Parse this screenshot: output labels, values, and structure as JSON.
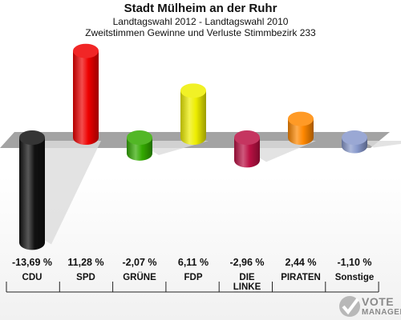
{
  "chart_data": {
    "type": "bar",
    "title": "Stadt Mülheim an der Ruhr",
    "subtitle_1": "Landtagswahl 2012 - Landtagswahl 2010",
    "subtitle_2": "Zweitstimmen Gewinne und Verluste Stimmbezirk 233",
    "categories": [
      "CDU",
      "SPD",
      "GRÜNE",
      "FDP",
      "DIE LINKE",
      "PIRATEN",
      "Sonstige"
    ],
    "category_labels": [
      [
        "CDU"
      ],
      [
        "SPD"
      ],
      [
        "GRÜNE"
      ],
      [
        "FDP"
      ],
      [
        "DIE",
        "LINKE"
      ],
      [
        "PIRATEN"
      ],
      [
        "Sonstige"
      ]
    ],
    "values": [
      -13.69,
      11.28,
      -2.07,
      6.11,
      -2.96,
      2.44,
      -1.1
    ],
    "value_labels": [
      "-13,69 %",
      "11,28 %",
      "-2,07 %",
      "6,11 %",
      "-2,96 %",
      "2,44 %",
      "-1,10 %"
    ],
    "colors": [
      "#111111",
      "#ee0000",
      "#33aa00",
      "#eeee00",
      "#bb1144",
      "#ff8800",
      "#8899cc"
    ],
    "unit": "%"
  },
  "logo": {
    "line1": "VOTE",
    "line2": "MANAGER"
  }
}
